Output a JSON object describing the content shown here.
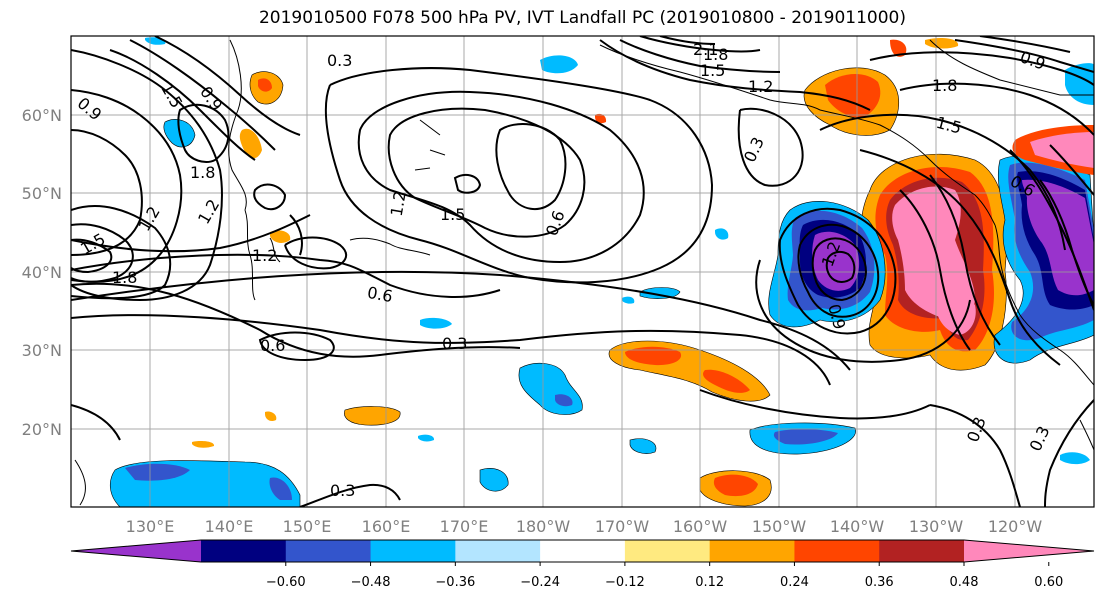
{
  "title": "2019010500 F078 500 hPa PV, IVT Landfall PC (2019010800 - 2019011000)",
  "map": {
    "lon_labels": [
      "130°E",
      "140°E",
      "150°E",
      "160°E",
      "170°E",
      "180°W",
      "170°W",
      "160°W",
      "150°W",
      "140°W",
      "130°W",
      "120°W"
    ],
    "lat_labels": [
      "20°N",
      "30°N",
      "40°N",
      "50°N",
      "60°N"
    ],
    "contour_labels": [
      "0.3",
      "0.3",
      "0.3",
      "0.3",
      "0.3",
      "0.3",
      "0.6",
      "0.6",
      "0.6",
      "0.6",
      "0.9",
      "0.9",
      "0.9",
      "0.9",
      "1.2",
      "1.2",
      "1.2",
      "1.2",
      "1.2",
      "1.2",
      "1.5",
      "1.5",
      "1.5",
      "1.5",
      "1.5",
      "1.8",
      "1.8",
      "1.8",
      "1.8",
      "2.1"
    ]
  },
  "colorbar": {
    "ticks": [
      "−0.60",
      "−0.48",
      "−0.36",
      "−0.24",
      "−0.12",
      "0.12",
      "0.24",
      "0.36",
      "0.48",
      "0.60"
    ],
    "colors": [
      "#9933cc",
      "#000080",
      "#3355cc",
      "#00bbff",
      "#b3e5ff",
      "#ffffff",
      "#ffea80",
      "#ffa500",
      "#ff4500",
      "#b22222",
      "#ff88bb"
    ]
  }
}
